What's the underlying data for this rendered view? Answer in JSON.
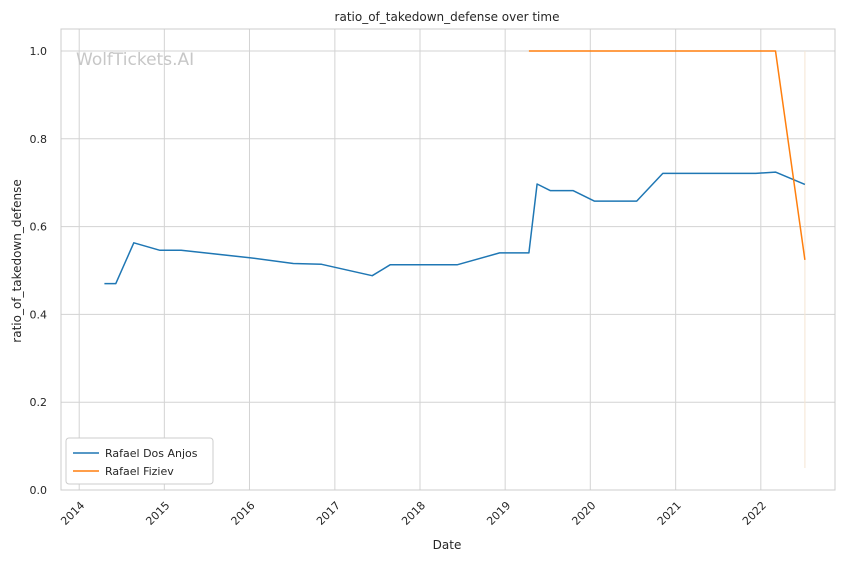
{
  "chart_data": {
    "type": "line",
    "title": "ratio_of_takedown_defense over time",
    "xlabel": "Date",
    "ylabel": "ratio_of_takedown_defense",
    "watermark": "WolfTickets.AI",
    "x_is_date": true,
    "xlim": [
      "2013-10-15",
      "2022-11-15"
    ],
    "ylim": [
      0.0,
      1.05
    ],
    "x_ticks": [
      "2014",
      "2015",
      "2016",
      "2017",
      "2018",
      "2019",
      "2020",
      "2021",
      "2022"
    ],
    "y_ticks": [
      "0.0",
      "0.2",
      "0.4",
      "0.6",
      "0.8",
      "1.0"
    ],
    "grid": true,
    "legend_position": "lower-left",
    "series": [
      {
        "name": "Rafael Dos Anjos",
        "color": "#1f77b4",
        "x": [
          "2014-04-19",
          "2014-06-07",
          "2014-08-23",
          "2014-12-13",
          "2015-03-14",
          "2016-01-02",
          "2016-07-07",
          "2016-11-05",
          "2017-06-10",
          "2017-08-26",
          "2018-06-09",
          "2018-12-08",
          "2019-04-13",
          "2019-05-18",
          "2019-07-13",
          "2019-10-19",
          "2020-01-18",
          "2020-07-18",
          "2020-11-07",
          "2021-12-11",
          "2022-03-05",
          "2022-07-09"
        ],
        "y": [
          0.47,
          0.47,
          0.563,
          0.546,
          0.546,
          0.529,
          0.516,
          0.514,
          0.488,
          0.513,
          0.513,
          0.54,
          0.54,
          0.697,
          0.682,
          0.682,
          0.658,
          0.658,
          0.721,
          0.721,
          0.724,
          0.696
        ]
      },
      {
        "name": "Rafael Fiziev",
        "color": "#ff7f0e",
        "x": [
          "2019-04-13",
          "2022-03-05",
          "2022-07-09"
        ],
        "y": [
          1.0,
          1.0,
          0.524
        ]
      }
    ],
    "faint_line": {
      "color": "#f5e6d3",
      "x": "2022-07-09",
      "y_range": [
        0.05,
        1.0
      ]
    }
  }
}
